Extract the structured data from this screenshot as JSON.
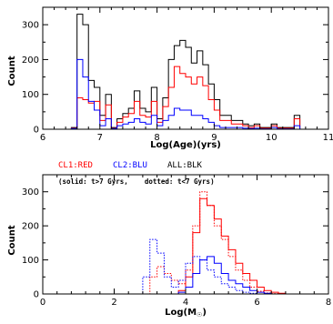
{
  "chart_data": [
    {
      "type": "step-histogram",
      "xlabel": "Log(Age)(yrs)",
      "ylabel": "Count",
      "xlim": [
        6,
        11
      ],
      "ylim": [
        0,
        350
      ],
      "xticks": [
        "6",
        "7",
        "8",
        "9",
        "10",
        "11"
      ],
      "yticks": [
        "0",
        "100",
        "200",
        "300"
      ],
      "bin_edges": [
        6.0,
        6.1,
        6.2,
        6.3,
        6.4,
        6.5,
        6.6,
        6.7,
        6.8,
        6.9,
        7.0,
        7.1,
        7.2,
        7.3,
        7.4,
        7.5,
        7.6,
        7.7,
        7.8,
        7.9,
        8.0,
        8.1,
        8.2,
        8.3,
        8.4,
        8.5,
        8.6,
        8.7,
        8.8,
        8.9,
        9.0,
        9.1,
        9.2,
        9.3,
        9.4,
        9.5,
        9.6,
        9.7,
        9.8,
        9.9,
        10.0,
        10.1,
        10.2,
        10.3,
        10.4,
        10.5,
        10.6,
        10.7,
        10.8,
        10.9,
        11.0
      ],
      "series": [
        {
          "name": "ALL",
          "color": "#000000",
          "values": [
            0,
            0,
            0,
            0,
            0,
            5,
            330,
            300,
            140,
            120,
            40,
            100,
            5,
            30,
            45,
            60,
            110,
            60,
            50,
            120,
            30,
            90,
            200,
            240,
            255,
            235,
            190,
            225,
            185,
            130,
            85,
            40,
            40,
            25,
            25,
            15,
            10,
            15,
            5,
            5,
            15,
            5,
            5,
            5,
            40,
            0,
            0,
            0,
            0,
            0
          ]
        },
        {
          "name": "CL1",
          "color": "#ff0000",
          "values": [
            0,
            0,
            0,
            0,
            0,
            3,
            90,
            85,
            75,
            80,
            25,
            70,
            3,
            20,
            35,
            45,
            80,
            40,
            35,
            80,
            20,
            65,
            120,
            180,
            160,
            150,
            130,
            150,
            125,
            85,
            55,
            25,
            25,
            15,
            15,
            10,
            5,
            10,
            3,
            3,
            10,
            3,
            3,
            3,
            30,
            0,
            0,
            0,
            0,
            0
          ]
        },
        {
          "name": "CL2",
          "color": "#0000ff",
          "values": [
            0,
            0,
            0,
            0,
            0,
            2,
            200,
            150,
            80,
            55,
            10,
            30,
            2,
            10,
            15,
            20,
            30,
            20,
            15,
            40,
            10,
            25,
            40,
            60,
            55,
            55,
            40,
            40,
            30,
            20,
            10,
            5,
            5,
            5,
            5,
            3,
            2,
            3,
            1,
            1,
            5,
            1,
            1,
            1,
            10,
            0,
            0,
            0,
            0,
            0
          ]
        }
      ]
    },
    {
      "type": "step-histogram",
      "xlabel": "Log(M⊙)",
      "ylabel": "Count",
      "xlim": [
        0,
        8
      ],
      "ylim": [
        0,
        350
      ],
      "xticks": [
        "0",
        "2",
        "4",
        "6",
        "8"
      ],
      "yticks": [
        "0",
        "100",
        "200",
        "300"
      ],
      "legend": {
        "cl1": "CL1:RED",
        "cl2": "CL2:BLU",
        "all": "ALL:BLK",
        "note": "(solid: t>7 Gyrs,    dotted: t<7 Gyrs)"
      },
      "bin_edges": [
        0.0,
        0.2,
        0.4,
        0.6,
        0.8,
        1.0,
        1.2,
        1.4,
        1.6,
        1.8,
        2.0,
        2.2,
        2.4,
        2.6,
        2.8,
        3.0,
        3.2,
        3.4,
        3.6,
        3.8,
        4.0,
        4.2,
        4.4,
        4.6,
        4.8,
        5.0,
        5.2,
        5.4,
        5.6,
        5.8,
        6.0,
        6.2,
        6.4,
        6.6,
        6.8,
        7.0,
        7.2,
        7.4,
        7.6,
        7.8,
        8.0
      ],
      "series": [
        {
          "name": "CL1 solid",
          "color": "#ff0000",
          "style": "solid",
          "values": [
            0,
            0,
            0,
            0,
            0,
            0,
            0,
            0,
            0,
            0,
            0,
            0,
            0,
            0,
            0,
            0,
            0,
            0,
            0,
            10,
            50,
            180,
            280,
            260,
            220,
            170,
            130,
            90,
            60,
            40,
            20,
            10,
            5,
            2,
            0,
            0,
            0,
            0,
            0,
            0
          ]
        },
        {
          "name": "CL1 dotted",
          "color": "#ff0000",
          "style": "dotted",
          "values": [
            0,
            0,
            0,
            0,
            0,
            0,
            0,
            0,
            0,
            0,
            0,
            0,
            0,
            0,
            0,
            50,
            80,
            60,
            40,
            30,
            70,
            200,
            300,
            260,
            200,
            160,
            110,
            70,
            40,
            20,
            8,
            3,
            1,
            0,
            0,
            0,
            0,
            0,
            0,
            0
          ]
        },
        {
          "name": "CL2 solid",
          "color": "#0000ff",
          "style": "solid",
          "values": [
            0,
            0,
            0,
            0,
            0,
            0,
            0,
            0,
            0,
            0,
            0,
            0,
            0,
            0,
            0,
            0,
            0,
            0,
            0,
            5,
            20,
            60,
            100,
            110,
            90,
            60,
            40,
            30,
            20,
            10,
            5,
            2,
            0,
            0,
            0,
            0,
            0,
            0,
            0,
            0
          ]
        },
        {
          "name": "CL2 dotted",
          "color": "#0000ff",
          "style": "dotted",
          "values": [
            0,
            0,
            0,
            0,
            0,
            0,
            0,
            0,
            0,
            0,
            0,
            0,
            0,
            0,
            50,
            160,
            120,
            50,
            20,
            40,
            90,
            110,
            100,
            70,
            50,
            30,
            20,
            10,
            5,
            2,
            0,
            0,
            0,
            0,
            0,
            0,
            0,
            0,
            0,
            0
          ]
        }
      ]
    }
  ]
}
